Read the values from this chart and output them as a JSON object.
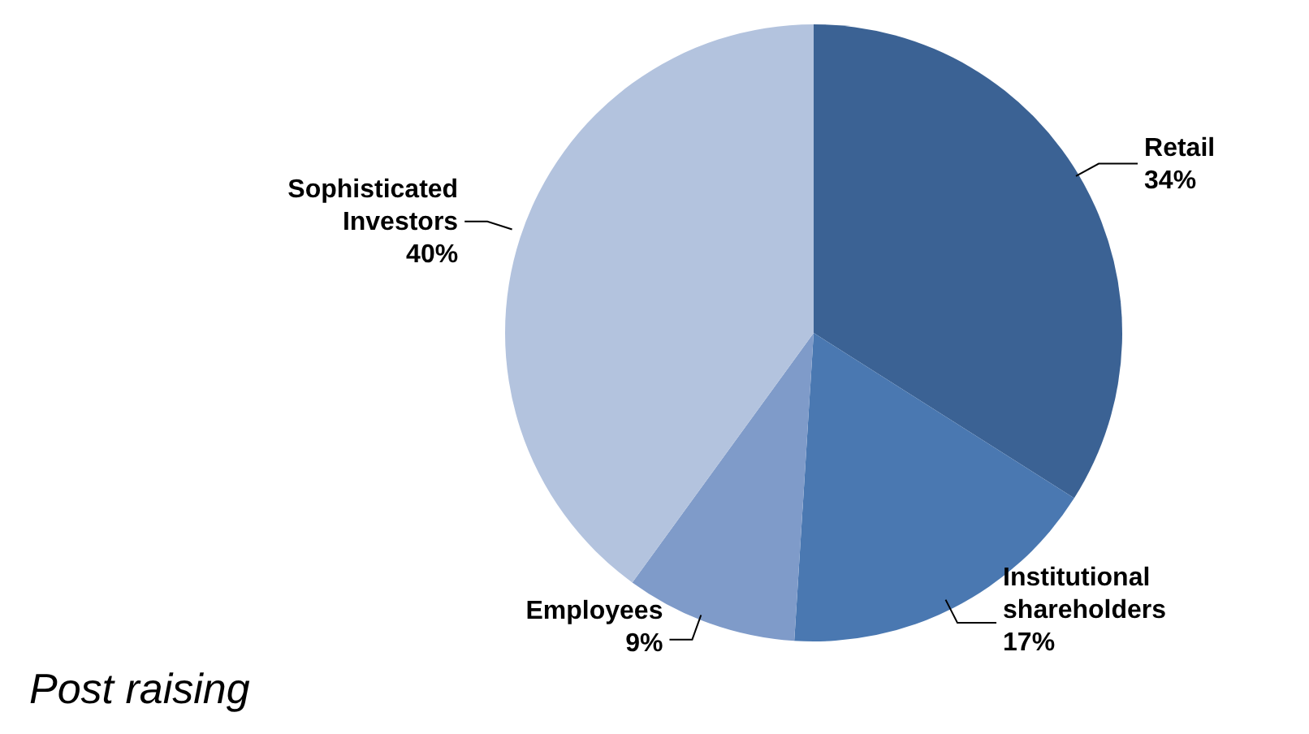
{
  "chart_data": {
    "type": "pie",
    "categories": [
      "Retail",
      "Institutional shareholders",
      "Employees",
      "Sophisticated Investors"
    ],
    "values": [
      34,
      17,
      9,
      40
    ],
    "colors": [
      "#3b6294",
      "#4a78b1",
      "#7f9bc9",
      "#b3c3de"
    ],
    "value_labels": [
      "34%",
      "17%",
      "9%",
      "40%"
    ],
    "annotations": [
      "Post raising"
    ]
  }
}
